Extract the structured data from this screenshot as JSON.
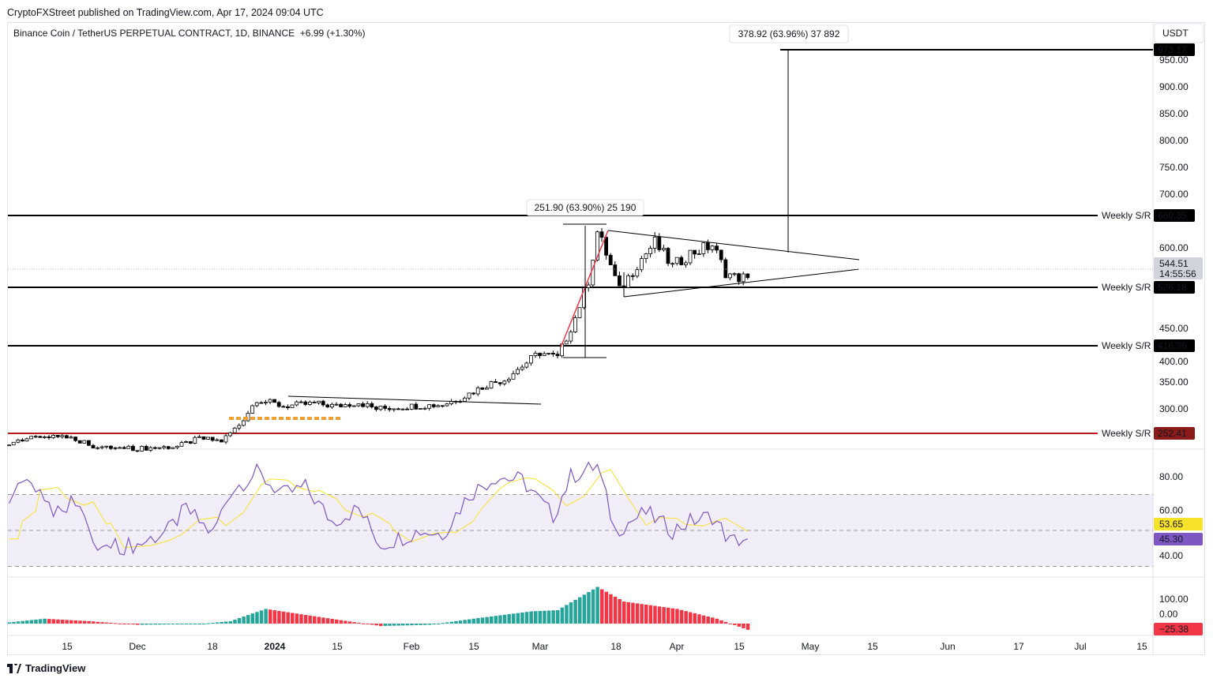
{
  "header": {
    "published": "CryptoFXStreet published on TradingView.com, Apr 17, 2024 09:04 UTC",
    "symbol": "Binance Coin / TetherUS PERPETUAL CONTRACT, 1D, BINANCE",
    "change": "+6.99 (+1.30%)",
    "currency": "USDT"
  },
  "footer": {
    "logo": "TradingView"
  },
  "colors": {
    "up": "#ffffff",
    "down": "#000000",
    "rsi": "#7e57c2",
    "rsi_ma": "#f7e22a",
    "hist_up": "#26a69a",
    "hist_down": "#f23645",
    "support_red": "#b71c1c"
  },
  "chart_data": {
    "type": "candlestick",
    "price_ticks": [
      "950.00",
      "900.00",
      "850.00",
      "800.00",
      "750.00",
      "700.00",
      "600.00",
      "450.00",
      "400.00",
      "350.00",
      "300.00"
    ],
    "x_ticks": [
      "15",
      "Dec",
      "18",
      "2024",
      "15",
      "Feb",
      "15",
      "Mar",
      "18",
      "Apr",
      "15",
      "May",
      "15",
      "Jun",
      "17",
      "Jul",
      "15"
    ],
    "close_anchors": [
      [
        "2023-11-02",
        232
      ],
      [
        "2023-11-08",
        248
      ],
      [
        "2023-11-15",
        250
      ],
      [
        "2023-11-20",
        235
      ],
      [
        "2023-11-22",
        228
      ],
      [
        "2023-12-01",
        226
      ],
      [
        "2023-12-10",
        230
      ],
      [
        "2023-12-15",
        245
      ],
      [
        "2023-12-20",
        240
      ],
      [
        "2023-12-24",
        270
      ],
      [
        "2023-12-28",
        318
      ],
      [
        "2024-01-03",
        305
      ],
      [
        "2024-01-10",
        310
      ],
      [
        "2024-01-15",
        305
      ],
      [
        "2024-01-20",
        312
      ],
      [
        "2024-01-24",
        300
      ],
      [
        "2024-02-01",
        305
      ],
      [
        "2024-02-08",
        308
      ],
      [
        "2024-02-12",
        320
      ],
      [
        "2024-02-18",
        345
      ],
      [
        "2024-02-22",
        355
      ],
      [
        "2024-03-01",
        405
      ],
      [
        "2024-03-05",
        395
      ],
      [
        "2024-03-09",
        470
      ],
      [
        "2024-03-12",
        540
      ],
      [
        "2024-03-14",
        630
      ],
      [
        "2024-03-16",
        590
      ],
      [
        "2024-03-19",
        520
      ],
      [
        "2024-03-23",
        570
      ],
      [
        "2024-03-27",
        610
      ],
      [
        "2024-03-31",
        565
      ],
      [
        "2024-04-04",
        590
      ],
      [
        "2024-04-09",
        605
      ],
      [
        "2024-04-12",
        555
      ],
      [
        "2024-04-14",
        545
      ],
      [
        "2024-04-17",
        544.51
      ]
    ],
    "last_price": "544.51",
    "countdown": "14:55:56",
    "levels": [
      {
        "label": "Weekly S/R",
        "value": "660.35"
      },
      {
        "label": "Weekly S/R",
        "value": "526.18"
      },
      {
        "label": "Weekly S/R",
        "value": "416.36"
      },
      {
        "label": "Weekly S/R",
        "value": "252.41",
        "red": true
      }
    ],
    "measures": [
      {
        "text": "251.90 (63.90%) 25 190"
      },
      {
        "text": "378.92 (63.96%) 37 892",
        "target": "973.17"
      }
    ],
    "rsi": {
      "ticks": [
        "80.00",
        "60.00",
        "40.00"
      ],
      "value": "45.30",
      "ma_value": "53.65",
      "anchors": [
        [
          "2023-11-02",
          65
        ],
        [
          "2023-11-06",
          80
        ],
        [
          "2023-11-12",
          62
        ],
        [
          "2023-11-18",
          68
        ],
        [
          "2023-11-21",
          40
        ],
        [
          "2023-12-01",
          42
        ],
        [
          "2023-12-08",
          50
        ],
        [
          "2023-12-12",
          62
        ],
        [
          "2023-12-18",
          48
        ],
        [
          "2023-12-22",
          72
        ],
        [
          "2023-12-28",
          82
        ],
        [
          "2024-01-03",
          70
        ],
        [
          "2024-01-08",
          74
        ],
        [
          "2024-01-14",
          55
        ],
        [
          "2024-01-20",
          62
        ],
        [
          "2024-01-25",
          42
        ],
        [
          "2024-02-03",
          50
        ],
        [
          "2024-02-08",
          48
        ],
        [
          "2024-02-14",
          70
        ],
        [
          "2024-02-20",
          80
        ],
        [
          "2024-02-26",
          78
        ],
        [
          "2024-03-04",
          58
        ],
        [
          "2024-03-08",
          80
        ],
        [
          "2024-03-14",
          86
        ],
        [
          "2024-03-18",
          50
        ],
        [
          "2024-03-25",
          60
        ],
        [
          "2024-03-31",
          50
        ],
        [
          "2024-04-04",
          55
        ],
        [
          "2024-04-09",
          58
        ],
        [
          "2024-04-13",
          44
        ],
        [
          "2024-04-17",
          45.3
        ]
      ]
    },
    "macd_hist": {
      "ticks": [
        "100.00",
        "0.00"
      ],
      "value": "−25.38",
      "anchors": [
        [
          "2023-11-02",
          5
        ],
        [
          "2023-11-10",
          20
        ],
        [
          "2023-11-20",
          10
        ],
        [
          "2023-12-01",
          -5
        ],
        [
          "2023-12-15",
          -2
        ],
        [
          "2023-12-22",
          10
        ],
        [
          "2023-12-30",
          60
        ],
        [
          "2024-01-10",
          30
        ],
        [
          "2024-01-25",
          -10
        ],
        [
          "2024-02-05",
          -5
        ],
        [
          "2024-02-15",
          20
        ],
        [
          "2024-02-28",
          50
        ],
        [
          "2024-03-05",
          55
        ],
        [
          "2024-03-14",
          150
        ],
        [
          "2024-03-20",
          90
        ],
        [
          "2024-04-01",
          60
        ],
        [
          "2024-04-10",
          20
        ],
        [
          "2024-04-17",
          -25.38
        ]
      ]
    }
  }
}
